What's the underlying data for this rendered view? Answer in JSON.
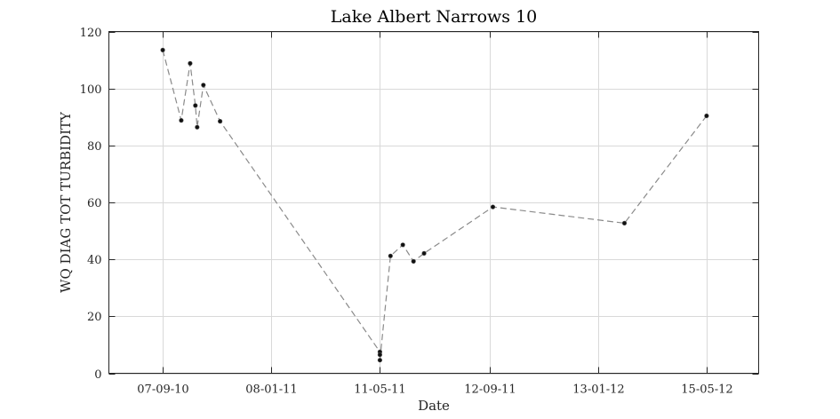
{
  "chart_data": {
    "type": "line",
    "title": "Lake Albert Narrows 10",
    "xlabel": "Date",
    "ylabel": "WQ DIAG TOT TURBIDITY",
    "x_ticks": [
      {
        "date": "2010-09-07",
        "label": "07-09-10"
      },
      {
        "date": "2011-01-08",
        "label": "08-01-11"
      },
      {
        "date": "2011-05-11",
        "label": "11-05-11"
      },
      {
        "date": "2011-09-12",
        "label": "12-09-11"
      },
      {
        "date": "2012-01-13",
        "label": "13-01-12"
      },
      {
        "date": "2012-05-15",
        "label": "15-05-12"
      }
    ],
    "y_ticks": [
      0,
      20,
      40,
      60,
      80,
      100,
      120
    ],
    "xlim": [
      "2010-07-08",
      "2012-07-13"
    ],
    "ylim": [
      0,
      120
    ],
    "grid": true,
    "line_style": "dashed",
    "line_color": "#8a8a8a",
    "marker_color": "#111111",
    "series": [
      {
        "points": [
          {
            "x": "2010-09-07",
            "y": 113.5
          },
          {
            "x": "2010-09-28",
            "y": 88.8
          },
          {
            "x": "2010-10-08",
            "y": 108.8
          },
          {
            "x": "2010-10-14",
            "y": 94.0
          },
          {
            "x": "2010-10-16",
            "y": 86.4
          },
          {
            "x": "2010-10-23",
            "y": 101.2
          },
          {
            "x": "2010-11-11",
            "y": 88.5
          },
          {
            "x": "2011-05-11",
            "y": 7.5
          },
          {
            "x": "2011-05-11",
            "y": 6.5
          },
          {
            "x": "2011-05-11",
            "y": 4.6
          },
          {
            "x": "2011-05-23",
            "y": 41.2
          },
          {
            "x": "2011-06-06",
            "y": 45.1
          },
          {
            "x": "2011-06-18",
            "y": 39.3
          },
          {
            "x": "2011-06-30",
            "y": 42.1
          },
          {
            "x": "2011-09-16",
            "y": 58.4
          },
          {
            "x": "2012-02-12",
            "y": 52.7
          },
          {
            "x": "2012-05-15",
            "y": 90.4
          }
        ]
      }
    ]
  }
}
